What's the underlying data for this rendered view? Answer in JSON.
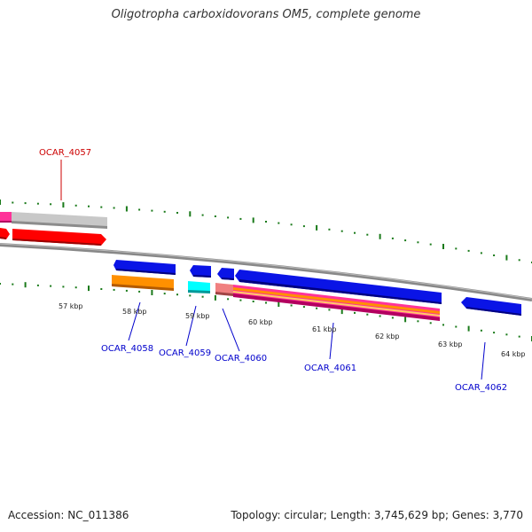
{
  "title": "Oligotropha carboxidovorans OM5, complete genome",
  "footer": {
    "accession": "Accession: NC_011386",
    "summary": "Topology: circular; Length: 3,745,629 bp; Genes: 3,770"
  },
  "colors": {
    "backbone": "#7f7f7f",
    "tick": "#1a7a1a",
    "gene_blue": "#0a14e6",
    "gene_red": "#ff0000",
    "gene_orange": "#ff9000",
    "gene_cyan": "#00ffff",
    "gene_pink": "#ff3399",
    "gene_gray": "#c8c8c8",
    "gene_salmon": "#f08080",
    "label_red": "#cc0000",
    "label_blue": "#0000cc"
  },
  "kbp_labels": [
    "57 kbp",
    "58 kbp",
    "59 kbp",
    "60 kbp",
    "61 kbp",
    "62 kbp",
    "63 kbp",
    "64 kbp"
  ],
  "gene_labels": [
    {
      "name": "OCAR_4057",
      "color": "red"
    },
    {
      "name": "OCAR_4058",
      "color": "blue"
    },
    {
      "name": "OCAR_4059",
      "color": "blue"
    },
    {
      "name": "OCAR_4060",
      "color": "blue"
    },
    {
      "name": "OCAR_4061",
      "color": "blue"
    },
    {
      "name": "OCAR_4062",
      "color": "blue"
    }
  ]
}
